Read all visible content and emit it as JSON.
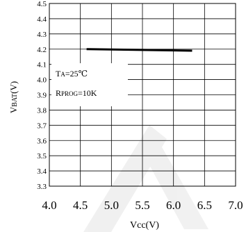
{
  "chart_data": {
    "type": "line",
    "title": "",
    "xlabel": "Vcc(V)",
    "ylabel": "VBAT(V)",
    "xlim": [
      4.0,
      7.0
    ],
    "ylim": [
      3.3,
      4.5
    ],
    "x_ticks": [
      "4.0",
      "4.5",
      "5.0",
      "5.5",
      "6.0",
      "6.5",
      "7.0"
    ],
    "y_ticks": [
      "3.3",
      "3.4",
      "3.5",
      "3.6",
      "3.7",
      "3.8",
      "3.9",
      "4.0",
      "4.1",
      "4.2",
      "4.3",
      "4.4",
      "4.5"
    ],
    "x_tick_values": [
      4.0,
      4.5,
      5.0,
      5.5,
      6.0,
      6.5,
      7.0
    ],
    "y_tick_values": [
      3.3,
      3.4,
      3.5,
      3.6,
      3.7,
      3.8,
      3.9,
      4.0,
      4.1,
      4.2,
      4.3,
      4.4,
      4.5
    ],
    "grid": true,
    "series": [
      {
        "x": [
          4.6,
          6.3
        ],
        "y": [
          4.2,
          4.19
        ],
        "color": "#000000"
      }
    ],
    "annotation": {
      "line1_prefix": "T",
      "line1_sub": "A",
      "line1_rest": "=25℃",
      "line2_prefix": "R",
      "line2_sub": "PROG",
      "line2_rest": "=10K"
    },
    "ylabel_main": "V",
    "ylabel_sub": "BAT",
    "ylabel_rest": "(V)"
  }
}
